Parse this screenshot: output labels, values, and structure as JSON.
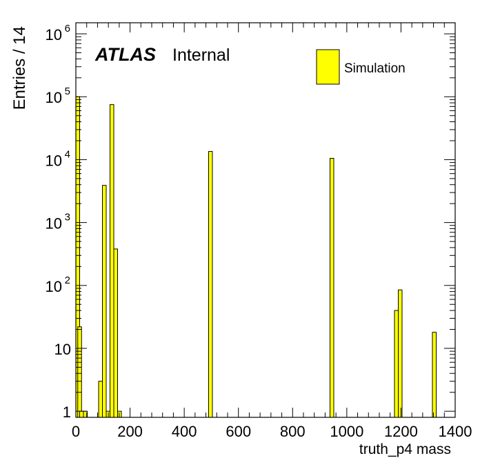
{
  "chart_data": {
    "type": "bar",
    "title": "",
    "xlabel": "truth_p4 mass",
    "ylabel": "Entries / 14",
    "log_y": true,
    "xlim": [
      0,
      1400
    ],
    "ylim": [
      0.8,
      1500000
    ],
    "bin_width": 14,
    "x_ticks": [
      0,
      200,
      400,
      600,
      800,
      1000,
      1200,
      1400
    ],
    "x_tick_labels": [
      "0",
      "200",
      "400",
      "600",
      "800",
      "1000",
      "1200",
      "1400"
    ],
    "y_ticks": [
      {
        "value": 1,
        "base": "1",
        "exp": ""
      },
      {
        "value": 10,
        "base": "10",
        "exp": ""
      },
      {
        "value": 100,
        "base": "10",
        "exp": "2"
      },
      {
        "value": 1000,
        "base": "10",
        "exp": "3"
      },
      {
        "value": 10000,
        "base": "10",
        "exp": "4"
      },
      {
        "value": 100000,
        "base": "10",
        "exp": "5"
      },
      {
        "value": 1000000,
        "base": "10",
        "exp": "6"
      }
    ],
    "label_atlas": "ATLAS",
    "label_internal": "Internal",
    "legend": {
      "position": "top-right",
      "entries": [
        {
          "name": "Simulation",
          "color": "#ffff00"
        }
      ]
    },
    "series": [
      {
        "name": "Simulation",
        "color": "#ffff00",
        "edge_color": "#000000",
        "bins": [
          {
            "x": 0,
            "value": 100000
          },
          {
            "x": 7,
            "value": 22
          },
          {
            "x": 14,
            "value": 1
          },
          {
            "x": 28,
            "value": 1
          },
          {
            "x": 84,
            "value": 3
          },
          {
            "x": 98,
            "value": 3900
          },
          {
            "x": 112,
            "value": 1
          },
          {
            "x": 126,
            "value": 75000
          },
          {
            "x": 140,
            "value": 380
          },
          {
            "x": 154,
            "value": 1
          },
          {
            "x": 490,
            "value": 13500
          },
          {
            "x": 938,
            "value": 10500
          },
          {
            "x": 1176,
            "value": 40
          },
          {
            "x": 1190,
            "value": 85
          },
          {
            "x": 1316,
            "value": 18
          }
        ]
      }
    ]
  }
}
